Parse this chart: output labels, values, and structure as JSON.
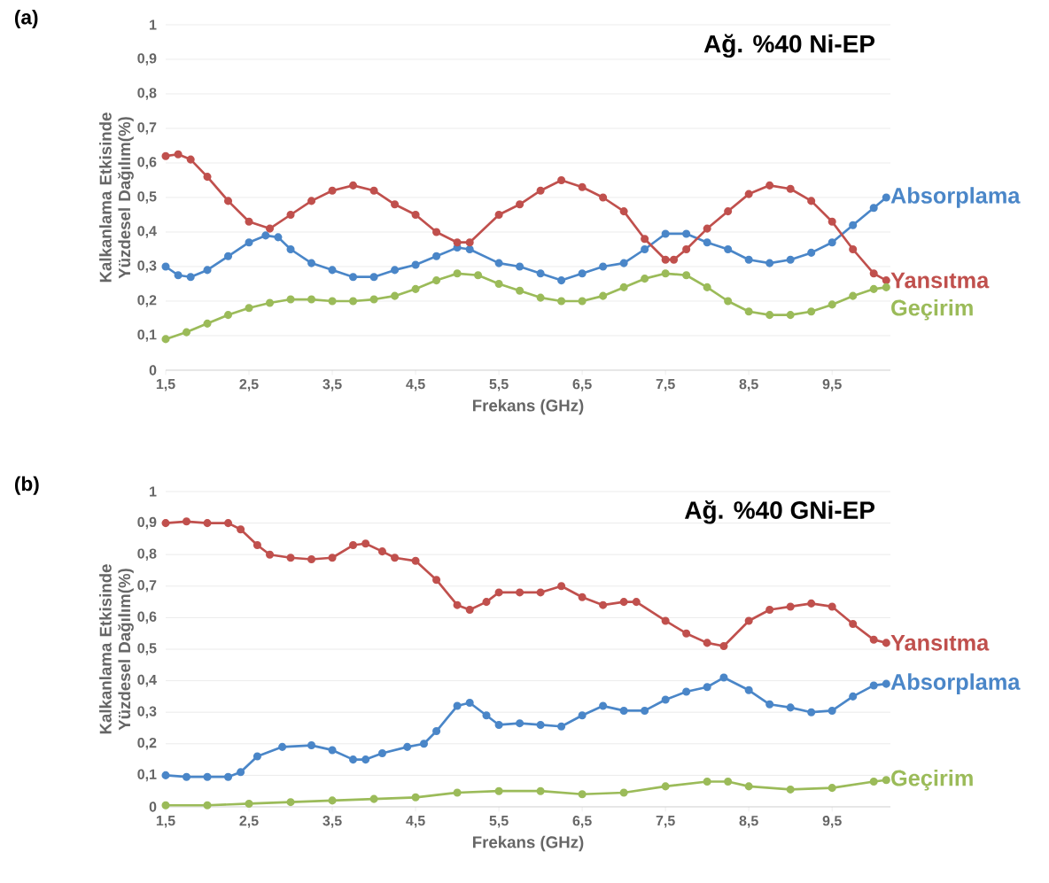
{
  "chart_data": [
    {
      "type": "line",
      "title": "Ağ. %40 Ni-EP",
      "xlabel": "Frekans (GHz)",
      "ylabel": "Kalkanlama Etkisinde Yüzdesel Dağılım(%)",
      "annotations": [
        "(a)"
      ],
      "xlim": [
        1.5,
        10.2
      ],
      "ylim": [
        0,
        1
      ],
      "xticks": [
        {
          "value": 1.5,
          "label": "1,5"
        },
        {
          "value": 2.5,
          "label": "2,5"
        },
        {
          "value": 3.5,
          "label": "3,5"
        },
        {
          "value": 4.5,
          "label": "4,5"
        },
        {
          "value": 5.5,
          "label": "5,5"
        },
        {
          "value": 6.5,
          "label": "6,5"
        },
        {
          "value": 7.5,
          "label": "7,5"
        },
        {
          "value": 8.5,
          "label": "8,5"
        },
        {
          "value": 9.5,
          "label": "9,5"
        }
      ],
      "yticks": [
        0,
        {
          "value": 0.1,
          "label": "0,1"
        },
        {
          "value": 0.2,
          "label": "0,2"
        },
        {
          "value": 0.3,
          "label": "0,3"
        },
        {
          "value": 0.4,
          "label": "0,4"
        },
        {
          "value": 0.5,
          "label": "0,5"
        },
        {
          "value": 0.6,
          "label": "0,6"
        },
        {
          "value": 0.7,
          "label": "0,7"
        },
        {
          "value": 0.8,
          "label": "0,8"
        },
        {
          "value": 0.9,
          "label": "0,9"
        },
        1
      ],
      "grid": "y",
      "marker": "circle",
      "line_style": "solid",
      "series": [
        {
          "name": "Absorplama",
          "color": "#4a86c8",
          "x": [
            1.5,
            1.65,
            1.8,
            2.0,
            2.25,
            2.5,
            2.7,
            2.85,
            3.0,
            3.25,
            3.5,
            3.75,
            4.0,
            4.25,
            4.5,
            4.75,
            5.0,
            5.15,
            5.5,
            5.75,
            6.0,
            6.25,
            6.5,
            6.75,
            7.0,
            7.25,
            7.5,
            7.75,
            8.0,
            8.25,
            8.5,
            8.75,
            9.0,
            9.25,
            9.5,
            9.75,
            10.0,
            10.15
          ],
          "values": [
            0.3,
            0.275,
            0.27,
            0.29,
            0.33,
            0.37,
            0.39,
            0.385,
            0.35,
            0.31,
            0.29,
            0.27,
            0.27,
            0.29,
            0.305,
            0.33,
            0.355,
            0.35,
            0.31,
            0.3,
            0.28,
            0.26,
            0.28,
            0.3,
            0.31,
            0.35,
            0.395,
            0.395,
            0.37,
            0.35,
            0.32,
            0.31,
            0.32,
            0.34,
            0.37,
            0.42,
            0.47,
            0.5
          ]
        },
        {
          "name": "Yansıtma",
          "color": "#c0504d",
          "x": [
            1.5,
            1.65,
            1.8,
            2.0,
            2.25,
            2.5,
            2.75,
            3.0,
            3.25,
            3.5,
            3.75,
            4.0,
            4.25,
            4.5,
            4.75,
            5.0,
            5.15,
            5.5,
            5.75,
            6.0,
            6.25,
            6.5,
            6.75,
            7.0,
            7.25,
            7.5,
            7.6,
            7.75,
            8.0,
            8.25,
            8.5,
            8.75,
            9.0,
            9.25,
            9.5,
            9.75,
            10.0,
            10.15
          ],
          "values": [
            0.62,
            0.625,
            0.61,
            0.56,
            0.49,
            0.43,
            0.41,
            0.45,
            0.49,
            0.52,
            0.535,
            0.52,
            0.48,
            0.45,
            0.4,
            0.37,
            0.37,
            0.45,
            0.48,
            0.52,
            0.55,
            0.53,
            0.5,
            0.46,
            0.38,
            0.32,
            0.32,
            0.35,
            0.41,
            0.46,
            0.51,
            0.535,
            0.525,
            0.49,
            0.43,
            0.35,
            0.28,
            0.26
          ]
        },
        {
          "name": "Geçirim",
          "color": "#9bbb59",
          "x": [
            1.5,
            1.75,
            2.0,
            2.25,
            2.5,
            2.75,
            3.0,
            3.25,
            3.5,
            3.75,
            4.0,
            4.25,
            4.5,
            4.75,
            5.0,
            5.25,
            5.5,
            5.75,
            6.0,
            6.25,
            6.5,
            6.75,
            7.0,
            7.25,
            7.5,
            7.75,
            8.0,
            8.25,
            8.5,
            8.75,
            9.0,
            9.25,
            9.5,
            9.75,
            10.0,
            10.15
          ],
          "values": [
            0.09,
            0.11,
            0.135,
            0.16,
            0.18,
            0.195,
            0.205,
            0.205,
            0.2,
            0.2,
            0.205,
            0.215,
            0.235,
            0.26,
            0.28,
            0.275,
            0.25,
            0.23,
            0.21,
            0.2,
            0.2,
            0.215,
            0.24,
            0.265,
            0.28,
            0.275,
            0.24,
            0.2,
            0.17,
            0.16,
            0.16,
            0.17,
            0.19,
            0.215,
            0.235,
            0.24
          ]
        }
      ]
    },
    {
      "type": "line",
      "title": "Ağ. %40 GNi-EP",
      "xlabel": "Frekans (GHz)",
      "ylabel": "Kalkanlama Etkisinde Yüzdesel Dağılım(%)",
      "annotations": [
        "(b)"
      ],
      "xlim": [
        1.5,
        10.2
      ],
      "ylim": [
        0,
        1
      ],
      "xticks": [
        {
          "value": 1.5,
          "label": "1,5"
        },
        {
          "value": 2.5,
          "label": "2,5"
        },
        {
          "value": 3.5,
          "label": "3,5"
        },
        {
          "value": 4.5,
          "label": "4,5"
        },
        {
          "value": 5.5,
          "label": "5,5"
        },
        {
          "value": 6.5,
          "label": "6,5"
        },
        {
          "value": 7.5,
          "label": "7,5"
        },
        {
          "value": 8.5,
          "label": "8,5"
        },
        {
          "value": 9.5,
          "label": "9,5"
        }
      ],
      "yticks": [
        0,
        {
          "value": 0.1,
          "label": "0,1"
        },
        {
          "value": 0.2,
          "label": "0,2"
        },
        {
          "value": 0.3,
          "label": "0,3"
        },
        {
          "value": 0.4,
          "label": "0,4"
        },
        {
          "value": 0.5,
          "label": "0,5"
        },
        {
          "value": 0.6,
          "label": "0,6"
        },
        {
          "value": 0.7,
          "label": "0,7"
        },
        {
          "value": 0.8,
          "label": "0,8"
        },
        {
          "value": 0.9,
          "label": "0,9"
        },
        1
      ],
      "grid": "y",
      "marker": "circle",
      "line_style": "solid",
      "series": [
        {
          "name": "Yansıtma",
          "color": "#c0504d",
          "x": [
            1.5,
            1.75,
            2.0,
            2.25,
            2.4,
            2.6,
            2.75,
            3.0,
            3.25,
            3.5,
            3.75,
            3.9,
            4.1,
            4.25,
            4.5,
            4.75,
            5.0,
            5.15,
            5.35,
            5.5,
            5.75,
            6.0,
            6.25,
            6.5,
            6.75,
            7.0,
            7.15,
            7.5,
            7.75,
            8.0,
            8.2,
            8.5,
            8.75,
            9.0,
            9.25,
            9.5,
            9.75,
            10.0,
            10.15
          ],
          "values": [
            0.9,
            0.905,
            0.9,
            0.9,
            0.88,
            0.83,
            0.8,
            0.79,
            0.785,
            0.79,
            0.83,
            0.835,
            0.81,
            0.79,
            0.78,
            0.72,
            0.64,
            0.625,
            0.65,
            0.68,
            0.68,
            0.68,
            0.7,
            0.665,
            0.64,
            0.65,
            0.65,
            0.59,
            0.55,
            0.52,
            0.51,
            0.59,
            0.625,
            0.635,
            0.645,
            0.635,
            0.58,
            0.53,
            0.52
          ]
        },
        {
          "name": "Absorplama",
          "color": "#4a86c8",
          "x": [
            1.5,
            1.75,
            2.0,
            2.25,
            2.4,
            2.6,
            2.9,
            3.25,
            3.5,
            3.75,
            3.9,
            4.1,
            4.4,
            4.6,
            4.75,
            5.0,
            5.15,
            5.35,
            5.5,
            5.75,
            6.0,
            6.25,
            6.5,
            6.75,
            7.0,
            7.25,
            7.5,
            7.75,
            8.0,
            8.2,
            8.5,
            8.75,
            9.0,
            9.25,
            9.5,
            9.75,
            10.0,
            10.15
          ],
          "values": [
            0.1,
            0.095,
            0.095,
            0.095,
            0.11,
            0.16,
            0.19,
            0.195,
            0.18,
            0.15,
            0.15,
            0.17,
            0.19,
            0.2,
            0.24,
            0.32,
            0.33,
            0.29,
            0.26,
            0.265,
            0.26,
            0.255,
            0.29,
            0.32,
            0.305,
            0.305,
            0.34,
            0.365,
            0.38,
            0.41,
            0.37,
            0.325,
            0.315,
            0.3,
            0.305,
            0.35,
            0.385,
            0.39
          ]
        },
        {
          "name": "Geçirim",
          "color": "#9bbb59",
          "x": [
            1.5,
            2.0,
            2.5,
            3.0,
            3.5,
            4.0,
            4.5,
            5.0,
            5.5,
            6.0,
            6.5,
            7.0,
            7.5,
            8.0,
            8.25,
            8.5,
            9.0,
            9.5,
            10.0,
            10.15
          ],
          "values": [
            0.005,
            0.005,
            0.01,
            0.015,
            0.02,
            0.025,
            0.03,
            0.045,
            0.05,
            0.05,
            0.04,
            0.045,
            0.065,
            0.08,
            0.08,
            0.065,
            0.055,
            0.06,
            0.08,
            0.085
          ]
        }
      ]
    }
  ]
}
